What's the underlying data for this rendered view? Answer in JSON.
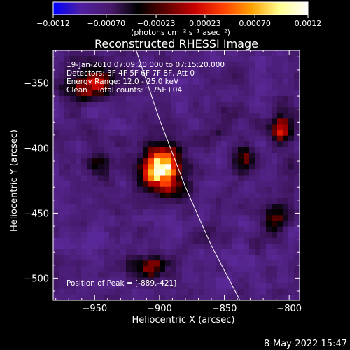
{
  "chart_data": {
    "type": "heatmap",
    "title": "Reconstructed RHESSI Image",
    "xlabel": "Heliocentric X (arcsec)",
    "ylabel": "Heliocentric Y (arcsec)",
    "xlim": [
      -982,
      -792
    ],
    "ylim": [
      -517,
      -325
    ],
    "x_ticks": [
      -950,
      -900,
      -850,
      -800
    ],
    "y_ticks": [
      -350,
      -400,
      -450,
      -500
    ],
    "x_tick_labels": [
      "−950",
      "−900",
      "−850",
      "−800"
    ],
    "y_tick_labels": [
      "−350",
      "−400",
      "−450",
      "−500"
    ],
    "colorbar": {
      "range": [
        -0.0012,
        0.0012
      ],
      "tick_values": [
        -0.0012,
        -0.0007,
        -0.00023,
        0.00023,
        0.0007,
        0.0012
      ],
      "tick_labels": [
        "−0.0012",
        "−0.00070",
        "−0.00023",
        "0.00023",
        "0.00070",
        "0.0012"
      ],
      "unit_label": "(photons cm⁻² s⁻¹ asec⁻²)",
      "colormap": [
        "#0000ff",
        "#5020a0",
        "#4a1a6e",
        "#000000",
        "#600000",
        "#c80000",
        "#ff4000",
        "#ffa000",
        "#ffff90",
        "#ffffff"
      ]
    },
    "annotations": [
      "19-Jan-2010 07:09:20.000 to 07:15:20.000",
      "Detectors: 3F 4F 5F 6F 7F 8F, Att 0",
      "Energy Range: 12.0 - 25.0 keV",
      "Clean    Total counts: 1.75E+04"
    ],
    "peak_label": "Position of Peak = [-889,-421]",
    "peak": {
      "x": -889,
      "y": -421,
      "value": 0.0012
    },
    "sources": [
      {
        "x": -899,
        "y": -417,
        "sx": 10,
        "sy": 13,
        "amp": 1.0
      },
      {
        "x": -953,
        "y": -350,
        "sx": 14,
        "sy": 8,
        "amp": 0.5
      },
      {
        "x": -806,
        "y": -386,
        "sx": 6,
        "sy": 9,
        "amp": 0.45
      },
      {
        "x": -810,
        "y": -452,
        "sx": 8,
        "sy": 9,
        "amp": 0.4
      },
      {
        "x": -835,
        "y": -410,
        "sx": 6,
        "sy": 8,
        "amp": 0.3
      },
      {
        "x": -905,
        "y": -490,
        "sx": 12,
        "sy": 7,
        "amp": 0.35
      },
      {
        "x": -945,
        "y": -410,
        "sx": 8,
        "sy": 8,
        "amp": 0.25
      }
    ],
    "limb_curve": [
      [
        -918,
        -325
      ],
      [
        -900,
        -378
      ],
      [
        -880,
        -430
      ],
      [
        -860,
        -475
      ],
      [
        -838,
        -517
      ]
    ],
    "grid": false
  },
  "footer": {
    "date": "8-May-2022 15:47"
  }
}
